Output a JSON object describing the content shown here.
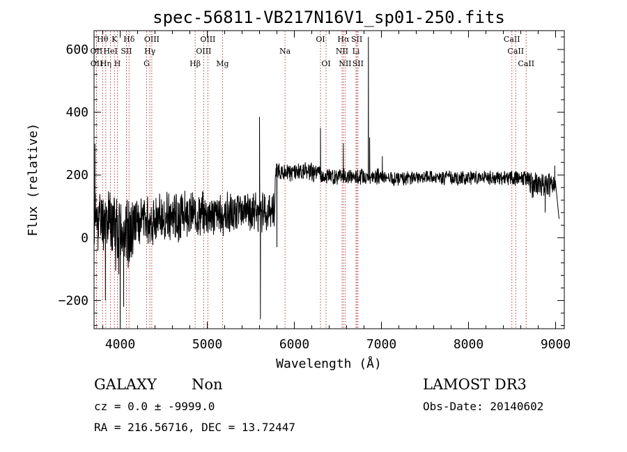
{
  "chart_data": {
    "type": "line",
    "title": "spec-56811-VB217N16V1_sp01-250.fits",
    "xlabel": "Wavelength (Å)",
    "ylabel": "Flux (relative)",
    "xlim": [
      3700,
      9100
    ],
    "ylim": [
      -290,
      660
    ],
    "x_ticks": [
      4000,
      5000,
      6000,
      7000,
      8000,
      9000
    ],
    "y_ticks": [
      -200,
      0,
      200,
      400,
      600
    ],
    "grid": false,
    "series": [
      {
        "name": "flux",
        "color": "#000000",
        "segments": [
          {
            "x0": 3700,
            "x1": 3900,
            "level": 60,
            "noise": 85,
            "seed": 11
          },
          {
            "x0": 3900,
            "x1": 4150,
            "level": 20,
            "noise": 110,
            "seed": 12
          },
          {
            "x0": 4150,
            "x1": 4700,
            "level": 60,
            "noise": 70,
            "seed": 13
          },
          {
            "x0": 4700,
            "x1": 5300,
            "level": 75,
            "noise": 60,
            "seed": 14
          },
          {
            "x0": 5300,
            "x1": 5780,
            "level": 85,
            "noise": 55,
            "seed": 15
          },
          {
            "x0": 5780,
            "x1": 6300,
            "level": 210,
            "noise": 25,
            "seed": 16
          },
          {
            "x0": 6300,
            "x1": 7000,
            "level": 195,
            "noise": 22,
            "seed": 17
          },
          {
            "x0": 7000,
            "x1": 8700,
            "level": 190,
            "noise": 20,
            "seed": 18
          },
          {
            "x0": 8700,
            "x1": 9000,
            "level": 170,
            "noise": 35,
            "seed": 19
          }
        ],
        "features": [
          {
            "x": 3710,
            "y": 300
          },
          {
            "x": 3830,
            "y": -200
          },
          {
            "x": 4000,
            "y": -280
          },
          {
            "x": 4040,
            "y": -220
          },
          {
            "x": 5600,
            "y": 385
          },
          {
            "x": 5610,
            "y": -260
          },
          {
            "x": 5800,
            "y": -30
          },
          {
            "x": 6300,
            "y": 350
          },
          {
            "x": 6563,
            "y": 300
          },
          {
            "x": 6850,
            "y": 640
          },
          {
            "x": 6865,
            "y": 320
          },
          {
            "x": 7010,
            "y": 260
          },
          {
            "x": 8880,
            "y": 80
          },
          {
            "x": 8990,
            "y": 230
          },
          {
            "x": 9040,
            "y": 60
          }
        ]
      }
    ],
    "line_markers": [
      {
        "label": "OII",
        "wave": 3727,
        "row": 2
      },
      {
        "label": "OII",
        "wave": 3729,
        "row": 3
      },
      {
        "label": "Hθ",
        "wave": 3798,
        "row": 1
      },
      {
        "label": "Hη",
        "wave": 3835,
        "row": 3
      },
      {
        "label": "HeI",
        "wave": 3889,
        "row": 2
      },
      {
        "label": "K",
        "wave": 3934,
        "row": 1
      },
      {
        "label": "H",
        "wave": 3968,
        "row": 3
      },
      {
        "label": "Hδ",
        "wave": 4102,
        "row": 1
      },
      {
        "label": "SII",
        "wave": 4072,
        "row": 2
      },
      {
        "label": "G",
        "wave": 4304,
        "row": 3
      },
      {
        "label": "OIII",
        "wave": 4363,
        "row": 1
      },
      {
        "label": "Hγ",
        "wave": 4341,
        "row": 2
      },
      {
        "label": "Hβ",
        "wave": 4861,
        "row": 3
      },
      {
        "label": "OIII",
        "wave": 5007,
        "row": 1
      },
      {
        "label": "OIII",
        "wave": 4959,
        "row": 2
      },
      {
        "label": "Mg",
        "wave": 5175,
        "row": 3
      },
      {
        "label": "Na",
        "wave": 5893,
        "row": 2
      },
      {
        "label": "OI",
        "wave": 6300,
        "row": 1
      },
      {
        "label": "OI",
        "wave": 6364,
        "row": 3
      },
      {
        "label": "Hα",
        "wave": 6563,
        "row": 1
      },
      {
        "label": "NII",
        "wave": 6548,
        "row": 2
      },
      {
        "label": "NII",
        "wave": 6583,
        "row": 3
      },
      {
        "label": "SII",
        "wave": 6717,
        "row": 1
      },
      {
        "label": "Li",
        "wave": 6708,
        "row": 2
      },
      {
        "label": "SII",
        "wave": 6731,
        "row": 3
      },
      {
        "label": "CaII",
        "wave": 8498,
        "row": 1
      },
      {
        "label": "CaII",
        "wave": 8542,
        "row": 2
      },
      {
        "label": "CaII",
        "wave": 8662,
        "row": 3
      }
    ]
  },
  "info": {
    "classification": "GALAXY",
    "subclass": "Non",
    "survey": "LAMOST DR3",
    "redshift": "cz = 0.0 ± -9999.0",
    "obs_date": "Obs-Date: 20140602",
    "coords": "RA = 216.56716, DEC =  13.72447"
  }
}
